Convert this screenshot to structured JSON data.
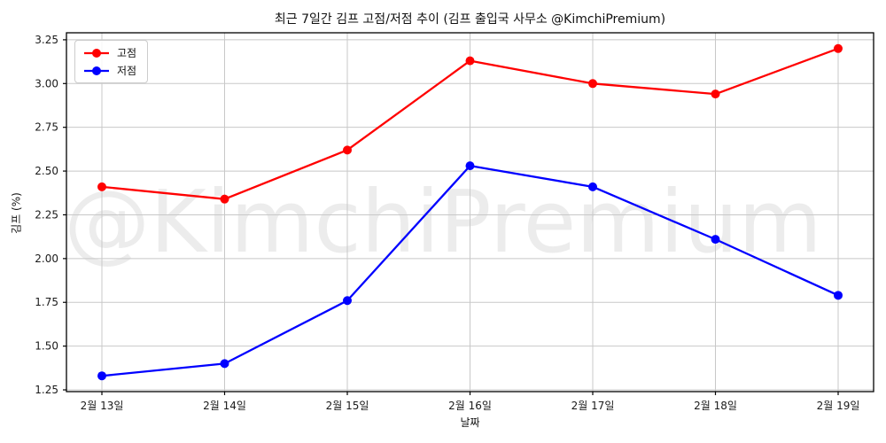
{
  "watermark": "@KimchiPremium",
  "chart_data": {
    "type": "line",
    "title": "최근 7일간 김프 고점/저점 추이 (김프 출입국 사무소 @KimchiPremium)",
    "xlabel": "날짜",
    "ylabel": "김프 (%)",
    "categories": [
      "2월 13일",
      "2월 14일",
      "2월 15일",
      "2월 16일",
      "2월 17일",
      "2월 18일",
      "2월 19일"
    ],
    "series": [
      {
        "name": "고점",
        "color": "#ff0000",
        "values": [
          2.41,
          2.34,
          2.62,
          3.13,
          3.0,
          2.94,
          3.2
        ]
      },
      {
        "name": "저점",
        "color": "#0000ff",
        "values": [
          1.33,
          1.4,
          1.76,
          2.53,
          2.41,
          2.11,
          1.79
        ]
      }
    ],
    "y_ticks": [
      1.25,
      1.5,
      1.75,
      2.0,
      2.25,
      2.5,
      2.75,
      3.0,
      3.25
    ],
    "ylim": [
      1.24,
      3.29
    ],
    "grid": true,
    "legend_position": "upper-left",
    "marker": "circle"
  },
  "colors": {
    "grid": "#c8c8c8",
    "spine": "#000000",
    "tick_text": "#1a1a1a",
    "high_series": "#ff0000",
    "low_series": "#0000ff",
    "watermark_gray": "#ececec"
  }
}
